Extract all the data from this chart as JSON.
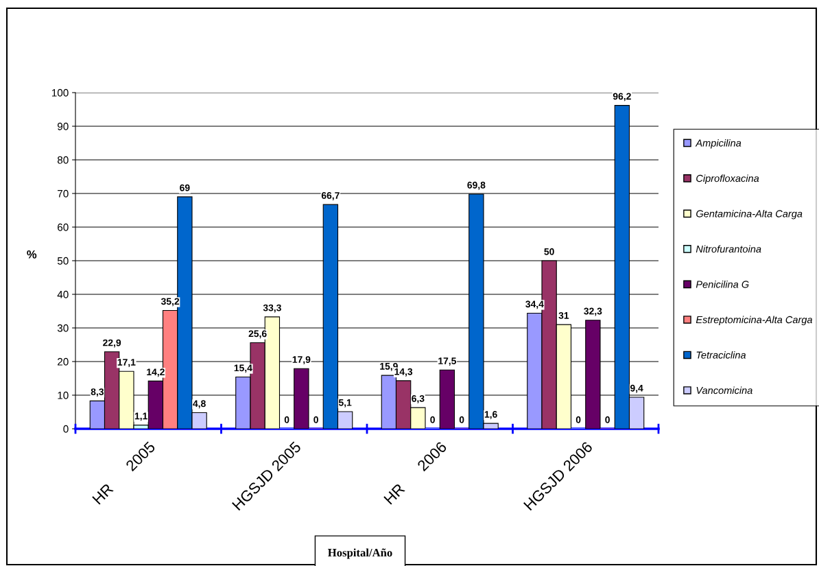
{
  "chart_data": {
    "type": "bar",
    "xlabel": "Hospital/Año",
    "ylabel": "%",
    "categories": [
      "HR      2005",
      "HGSJD 2005",
      "HR      2006",
      "HGSJD 2006"
    ],
    "series": [
      {
        "name": "Ampicilina",
        "color": "#9999ff",
        "values": [
          8.3,
          15.4,
          15.9,
          34.4
        ],
        "value_labels": [
          "8,3",
          "15,4",
          "15,9",
          "34,4"
        ]
      },
      {
        "name": "Ciprofloxacina",
        "color": "#993366",
        "values": [
          22.9,
          25.6,
          14.3,
          50
        ],
        "value_labels": [
          "22,9",
          "25,6",
          "14,3",
          "50"
        ]
      },
      {
        "name": "Gentamicina-Alta Carga",
        "color": "#ffffcc",
        "values": [
          17.1,
          33.3,
          6.3,
          31
        ],
        "value_labels": [
          "17,1",
          "33,3",
          "6,3",
          "31"
        ]
      },
      {
        "name": "Nitrofurantoina",
        "color": "#ccffff",
        "values": [
          1.1,
          0,
          0,
          0
        ],
        "value_labels": [
          "1,1",
          "0",
          "0",
          "0"
        ]
      },
      {
        "name": "Penicilina G",
        "color": "#660066",
        "values": [
          14.2,
          17.9,
          17.5,
          32.3
        ],
        "value_labels": [
          "14,2",
          "17,9",
          "17,5",
          "32,3"
        ]
      },
      {
        "name": "Estreptomicina-Alta Carga",
        "color": "#ff8080",
        "values": [
          35.2,
          0,
          0,
          0
        ],
        "value_labels": [
          "35,2",
          "0",
          "0",
          "0"
        ]
      },
      {
        "name": "Tetraciclina",
        "color": "#0066cc",
        "values": [
          69,
          66.7,
          69.8,
          96.2
        ],
        "value_labels": [
          "69",
          "66,7",
          "69,8",
          "96,2"
        ]
      },
      {
        "name": "Vancomicina",
        "color": "#ccccff",
        "values": [
          4.8,
          5.1,
          1.6,
          9.4
        ],
        "value_labels": [
          "4,8",
          "5,1",
          "1,6",
          "9,4"
        ]
      }
    ],
    "ylim": [
      0,
      100
    ],
    "yticks": [
      0,
      10,
      20,
      30,
      40,
      50,
      60,
      70,
      80,
      90,
      100
    ],
    "grid": "y",
    "legend": "right"
  }
}
